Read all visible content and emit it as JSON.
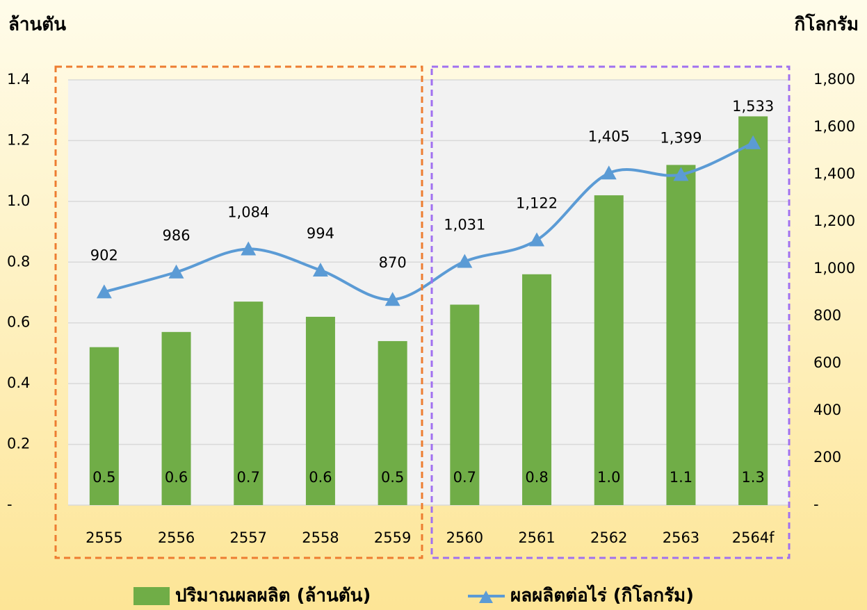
{
  "chart_data": {
    "type": "bar_line",
    "y_label": "ล้านตัน",
    "y2_label": "กิโลกรัม",
    "categories": [
      "2555",
      "2556",
      "2557",
      "2558",
      "2559",
      "2560",
      "2561",
      "2562",
      "2563",
      "2564f"
    ],
    "series": [
      {
        "name": "ปริมาณผลผลิต (ล้านตัน)",
        "type": "bar",
        "color": "#70ad47",
        "values": [
          0.52,
          0.57,
          0.67,
          0.62,
          0.54,
          0.66,
          0.76,
          1.02,
          1.12,
          1.28
        ],
        "value_labels": [
          "0.5",
          "0.6",
          "0.7",
          "0.6",
          "0.5",
          "0.7",
          "0.8",
          "1.0",
          "1.1",
          "1.3"
        ]
      },
      {
        "name": "ผลผลิตต่อไร่ (กิโลกรัม)",
        "type": "line",
        "axis": "y2",
        "color": "#5b9bd5",
        "values": [
          902,
          986,
          1084,
          994,
          870,
          1031,
          1122,
          1405,
          1399,
          1533
        ],
        "value_labels": [
          "902",
          "986",
          "1,084",
          "994",
          "870",
          "1,031",
          "1,122",
          "1,405",
          "1,399",
          "1,533"
        ]
      }
    ],
    "ylim": [
      0,
      1.4
    ],
    "yticks": [
      {
        "value": 0,
        "label": "-"
      },
      0.2,
      0.4,
      0.6,
      0.8,
      {
        "value": 1,
        "label": "1.0"
      },
      1.2,
      1.4
    ],
    "y2lim": [
      0,
      1800
    ],
    "y2ticks": [
      {
        "value": 0,
        "label": "-"
      },
      200,
      400,
      600,
      800,
      {
        "value": 1000,
        "label": "1,000"
      },
      {
        "value": 1200,
        "label": "1,200"
      },
      {
        "value": 1400,
        "label": "1,400"
      },
      {
        "value": 1600,
        "label": "1,600"
      },
      {
        "value": 1800,
        "label": "1,800"
      }
    ],
    "grid": true,
    "legend": "bottom"
  }
}
